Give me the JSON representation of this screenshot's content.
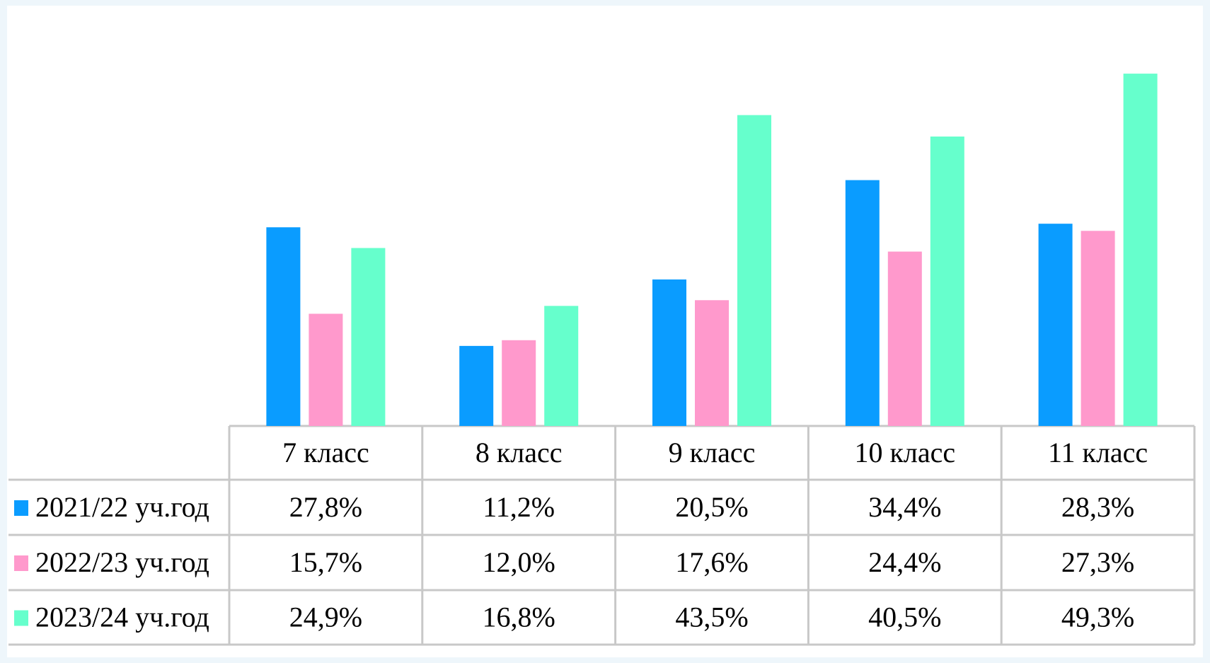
{
  "chart_data": {
    "type": "bar",
    "categories": [
      "7 класс",
      "8 класс",
      "9 класс",
      "10 класс",
      "11 класс"
    ],
    "series": [
      {
        "name": "2021/22 уч.год",
        "color": "#0a9cff",
        "values": [
          27.8,
          11.2,
          20.5,
          34.4,
          28.3
        ],
        "value_labels": [
          "27,8%",
          "11,2%",
          "20,5%",
          "34,4%",
          "28,3%"
        ]
      },
      {
        "name": "2022/23 уч.год",
        "color": "#ff99cc",
        "values": [
          15.7,
          12.0,
          17.6,
          24.4,
          27.3
        ],
        "value_labels": [
          "15,7%",
          "12,0%",
          "17,6%",
          "24,4%",
          "27,3%"
        ]
      },
      {
        "name": "2023/24 уч.год",
        "color": "#66ffcc",
        "values": [
          24.9,
          16.8,
          43.5,
          40.5,
          49.3
        ],
        "value_labels": [
          "24,9%",
          "16,8%",
          "43,5%",
          "40,5%",
          "49,3%"
        ]
      }
    ],
    "ylim": [
      0,
      50
    ]
  }
}
